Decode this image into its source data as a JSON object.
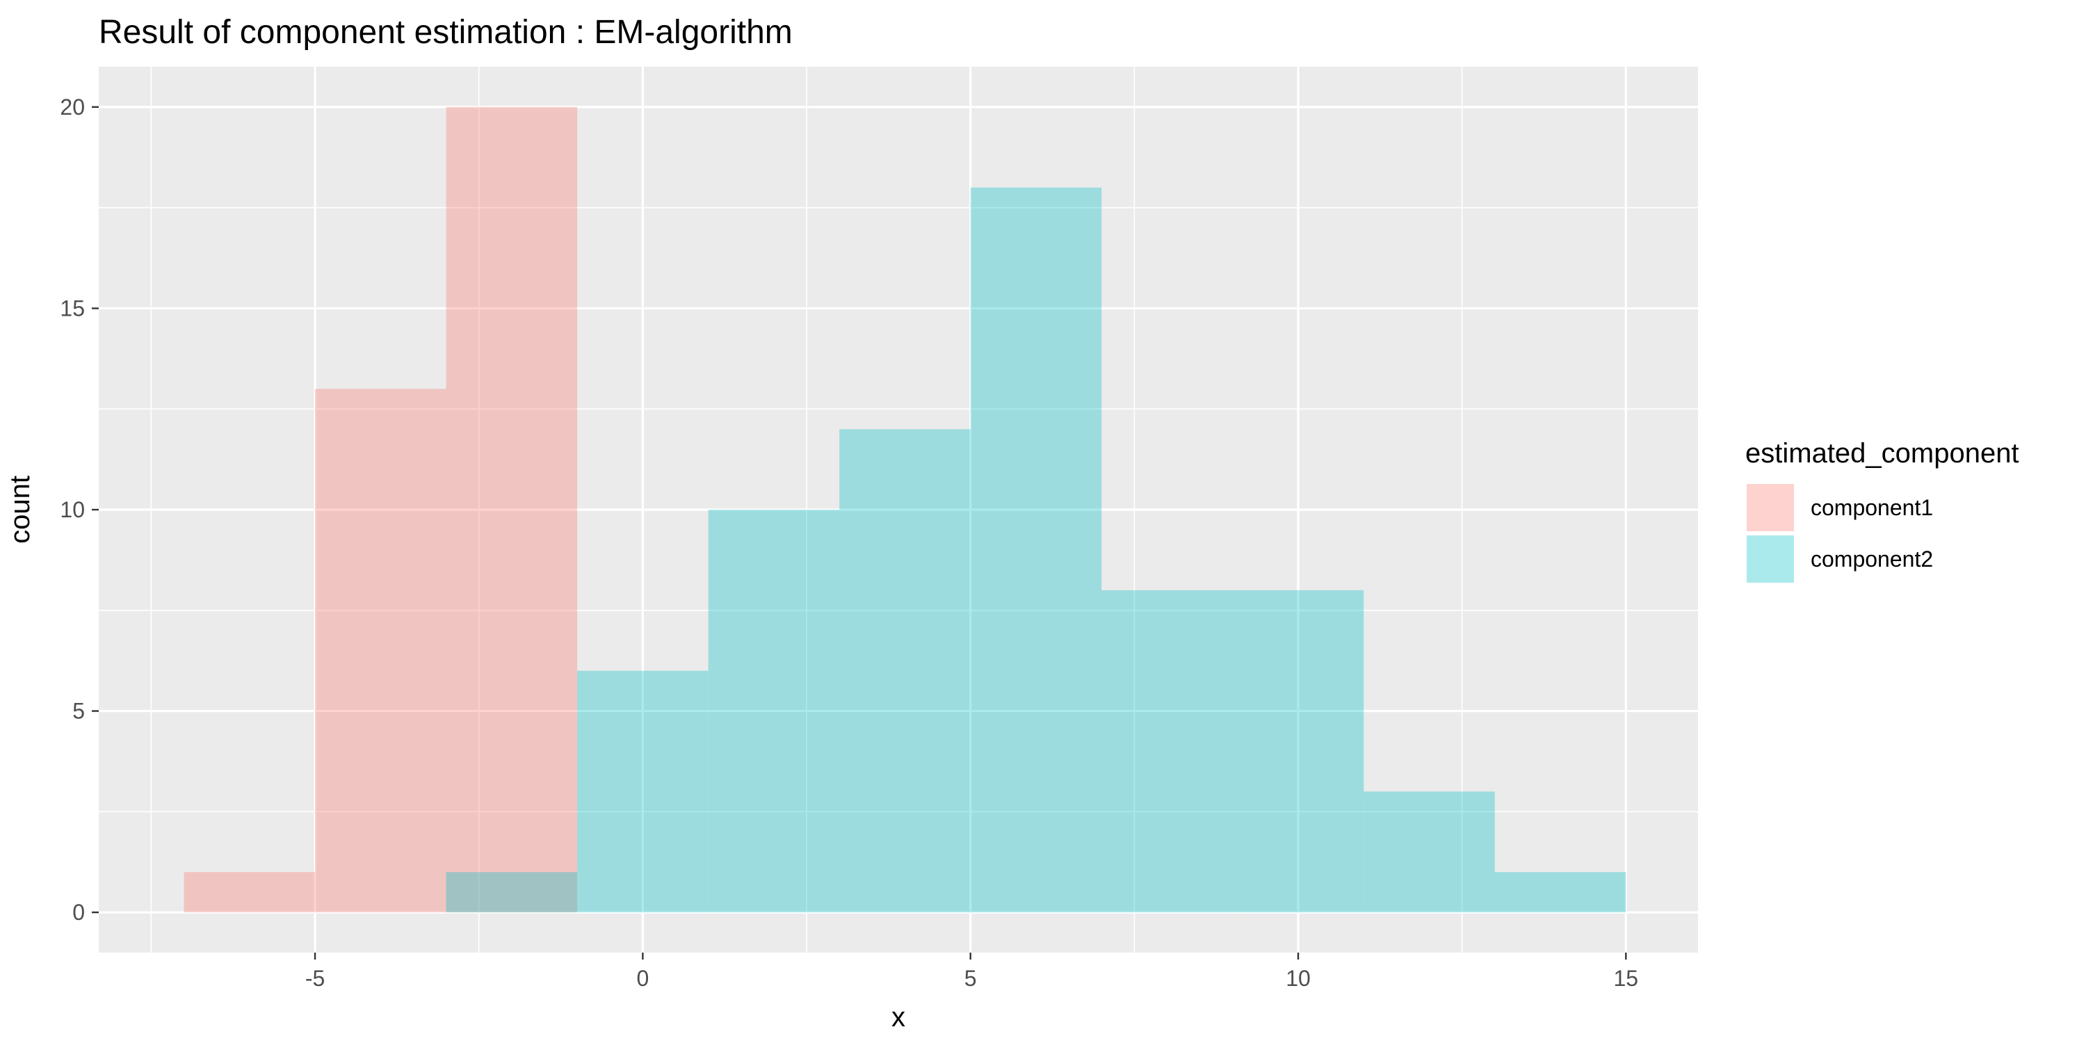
{
  "chart_data": {
    "type": "bar",
    "title": "Result of component estimation : EM-algorithm",
    "xlabel": "x",
    "ylabel": "count",
    "xlim": [
      -8.3,
      16.1
    ],
    "ylim": [
      -1,
      21
    ],
    "xticks": [
      -5,
      0,
      5,
      10,
      15
    ],
    "yticks": [
      0,
      5,
      10,
      15,
      20
    ],
    "grid": true,
    "legend": {
      "title": "estimated_component",
      "placement": "right"
    },
    "bin_width": 2,
    "series": [
      {
        "name": "component1",
        "color": "#F8766D",
        "bins": [
          {
            "x0": -7,
            "x1": -5,
            "count": 1
          },
          {
            "x0": -5,
            "x1": -3,
            "count": 13
          },
          {
            "x0": -3,
            "x1": -1,
            "count": 20
          }
        ]
      },
      {
        "name": "component2",
        "color": "#00BFC4",
        "bins": [
          {
            "x0": -3,
            "x1": -1,
            "count": 1
          },
          {
            "x0": -1,
            "x1": 1,
            "count": 6
          },
          {
            "x0": 1,
            "x1": 3,
            "count": 10
          },
          {
            "x0": 3,
            "x1": 5,
            "count": 12
          },
          {
            "x0": 5,
            "x1": 7,
            "count": 18
          },
          {
            "x0": 7,
            "x1": 9,
            "count": 8
          },
          {
            "x0": 9,
            "x1": 11,
            "count": 8
          },
          {
            "x0": 11,
            "x1": 13,
            "count": 3
          },
          {
            "x0": 13,
            "x1": 15,
            "count": 1
          }
        ]
      }
    ]
  }
}
